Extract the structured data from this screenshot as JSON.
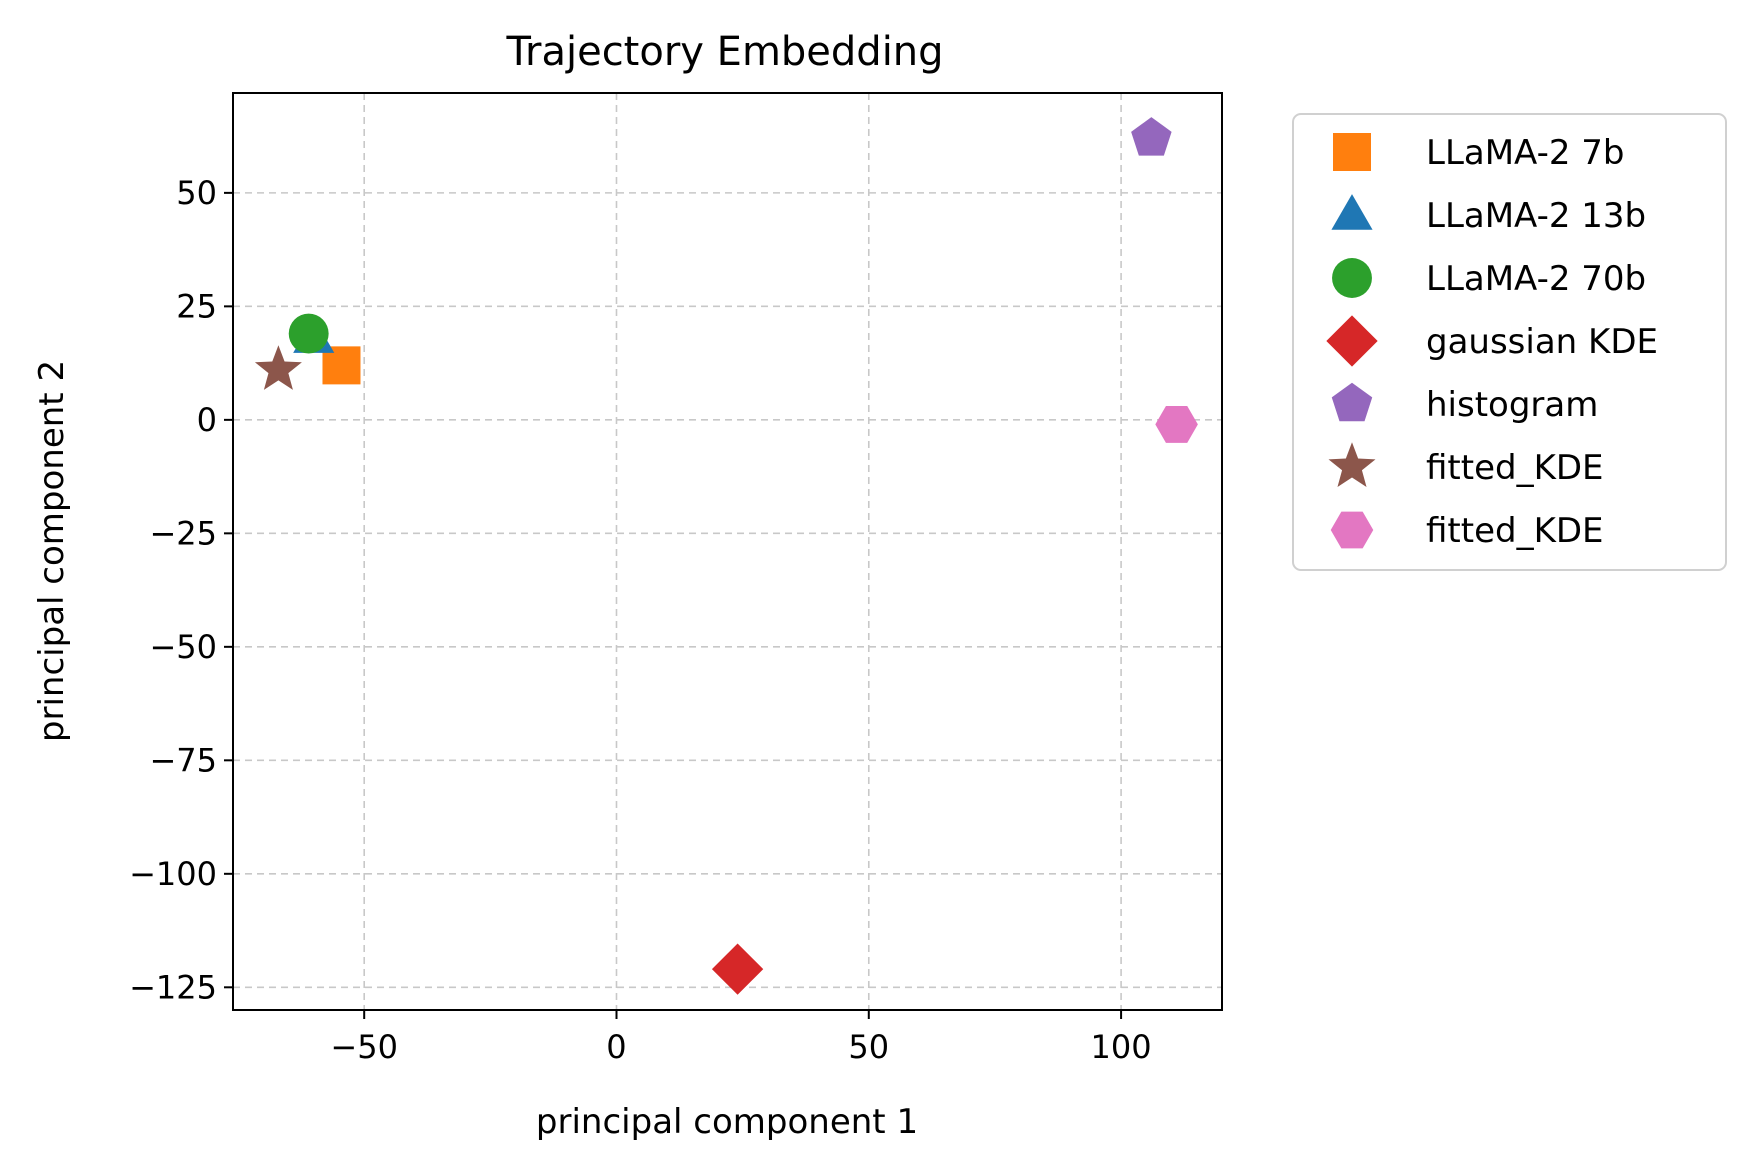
{
  "chart_data": {
    "type": "scatter",
    "title": "Trajectory Embedding",
    "xlabel": "principal component 1",
    "ylabel": "principal component 2",
    "xlim": [
      -76,
      120
    ],
    "ylim": [
      -130,
      72
    ],
    "xticks": [
      -50,
      0,
      50,
      100
    ],
    "yticks": [
      -125,
      -100,
      -75,
      -50,
      -25,
      0,
      25,
      50
    ],
    "xtick_labels": [
      "−50",
      "0",
      "50",
      "100"
    ],
    "ytick_labels": [
      "−125",
      "−100",
      "−75",
      "−50",
      "−25",
      "0",
      "25",
      "50"
    ],
    "grid": true,
    "legend_position": "outside-right-top",
    "series": [
      {
        "name": "LLaMA-2 7b",
        "marker": "square",
        "color": "#ff7f0e",
        "x": [
          -54.5
        ],
        "y": [
          12
        ]
      },
      {
        "name": "LLaMA-2 13b",
        "marker": "triangle",
        "color": "#1f77b4",
        "x": [
          -60
        ],
        "y": [
          18
        ]
      },
      {
        "name": "LLaMA-2 70b",
        "marker": "circle",
        "color": "#2ca02c",
        "x": [
          -61
        ],
        "y": [
          19
        ]
      },
      {
        "name": "gaussian KDE",
        "marker": "diamond",
        "color": "#d62728",
        "x": [
          24
        ],
        "y": [
          -121
        ]
      },
      {
        "name": "histogram",
        "marker": "pentagon",
        "color": "#9467bd",
        "x": [
          106
        ],
        "y": [
          62
        ]
      },
      {
        "name": "fitted_KDE",
        "marker": "star",
        "color": "#8c564b",
        "x": [
          -67
        ],
        "y": [
          11
        ]
      },
      {
        "name": "fitted_KDE",
        "marker": "hexagon",
        "color": "#e377c2",
        "x": [
          111
        ],
        "y": [
          -1
        ]
      }
    ]
  }
}
